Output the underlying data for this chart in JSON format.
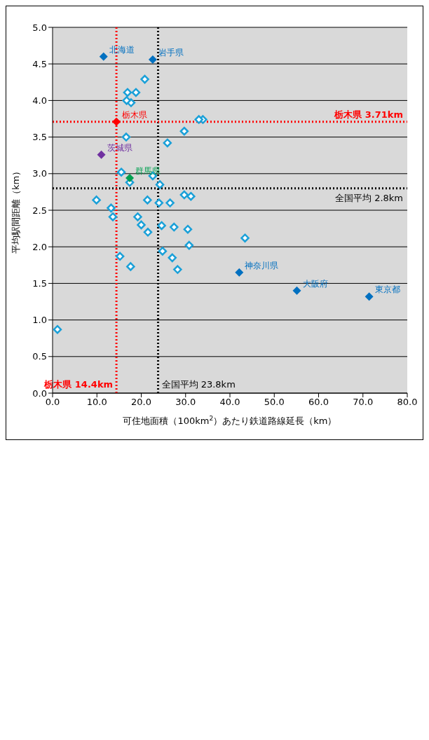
{
  "chart_data": {
    "type": "scatter",
    "xlabel": "可住地面積（100km$^{2}$）あたり鉄道路線延長（km）",
    "ylabel": "平均駅間距離（km）",
    "xlim": [
      0,
      80
    ],
    "xticks": [
      {
        "value": 0,
        "label": "0.0"
      },
      {
        "value": 10,
        "label": "10.0"
      },
      {
        "value": 20,
        "label": "20.0"
      },
      {
        "value": 30,
        "label": "30.0"
      },
      {
        "value": 40,
        "label": "40.0"
      },
      {
        "value": 50,
        "label": "50.0"
      },
      {
        "value": 60,
        "label": "60.0"
      },
      {
        "value": 70,
        "label": "70.0"
      },
      {
        "value": 80,
        "label": "80.0"
      }
    ],
    "ylim": [
      0,
      5
    ],
    "yticks": [
      {
        "value": 0,
        "label": "0.0"
      },
      {
        "value": 0.5,
        "label": "0.5"
      },
      {
        "value": 1,
        "label": "1.0"
      },
      {
        "value": 1.5,
        "label": "1.5"
      },
      {
        "value": 2,
        "label": "2.0"
      },
      {
        "value": 2.5,
        "label": "2.5"
      },
      {
        "value": 3,
        "label": "3.0"
      },
      {
        "value": 3.5,
        "label": "3.5"
      },
      {
        "value": 4,
        "label": "4.0"
      },
      {
        "value": 4.5,
        "label": "4.5"
      },
      {
        "value": 5,
        "label": "5.0"
      }
    ],
    "grid": "y",
    "marker": "diamond",
    "series": [
      {
        "color": "#1aa0d8",
        "x": [
          33.9,
          33.0,
          29.7,
          25.9,
          20.8,
          18.8,
          17.7,
          16.9,
          16.7,
          16.6,
          15.5,
          22.6,
          24.2,
          17.4,
          31.2,
          29.7,
          26.5,
          24.0,
          21.4,
          13.2,
          13.6,
          9.9,
          30.5,
          30.8,
          27.4,
          24.6,
          27.0,
          28.2,
          24.8,
          21.5,
          20.0,
          19.2,
          17.6,
          15.2,
          1.1,
          43.4
        ],
        "values": [
          3.74,
          3.74,
          3.58,
          3.42,
          4.29,
          4.11,
          3.97,
          4.11,
          4.0,
          3.5,
          3.02,
          2.97,
          2.85,
          2.88,
          2.69,
          2.71,
          2.6,
          2.6,
          2.64,
          2.53,
          2.41,
          2.64,
          2.24,
          2.02,
          2.27,
          2.29,
          1.85,
          1.69,
          1.94,
          2.2,
          2.3,
          2.41,
          1.73,
          1.87,
          0.87,
          2.12
        ]
      },
      {
        "name": "北海道",
        "color": "#0070c0",
        "x": [
          11.5
        ],
        "values": [
          4.6
        ]
      },
      {
        "name": "岩手県",
        "color": "#0070c0",
        "x": [
          22.6
        ],
        "values": [
          4.56
        ]
      },
      {
        "name": "栃木県",
        "color": "#ff0000",
        "x": [
          14.4
        ],
        "values": [
          3.71
        ]
      },
      {
        "name": "茨城県",
        "color": "#7030a0",
        "x": [
          11.0
        ],
        "values": [
          3.26
        ]
      },
      {
        "name": "群馬県",
        "color": "#00a050",
        "x": [
          17.4
        ],
        "values": [
          2.94
        ]
      },
      {
        "name": "神奈川県",
        "color": "#0070c0",
        "x": [
          42.1
        ],
        "values": [
          1.65
        ]
      },
      {
        "name": "大阪府",
        "color": "#0070c0",
        "x": [
          55.1
        ],
        "values": [
          1.4
        ]
      },
      {
        "name": "東京都",
        "color": "#0070c0",
        "x": [
          71.4
        ],
        "values": [
          1.32
        ]
      }
    ],
    "ref_lines": [
      {
        "axis": "x",
        "value": 23.8,
        "label": "全国平均 23.8km",
        "color": "#000000",
        "line_style": "dotted"
      },
      {
        "axis": "y",
        "value": 2.8,
        "label": "全国平均 2.8km",
        "color": "#000000",
        "line_style": "dotted"
      },
      {
        "axis": "x",
        "value": 14.4,
        "label": "栃木県 14.4km",
        "color": "#ff0000",
        "line_style": "dotted"
      },
      {
        "axis": "y",
        "value": 3.71,
        "label": "栃木県 3.71km",
        "color": "#ff0000",
        "line_style": "dotted"
      }
    ]
  }
}
